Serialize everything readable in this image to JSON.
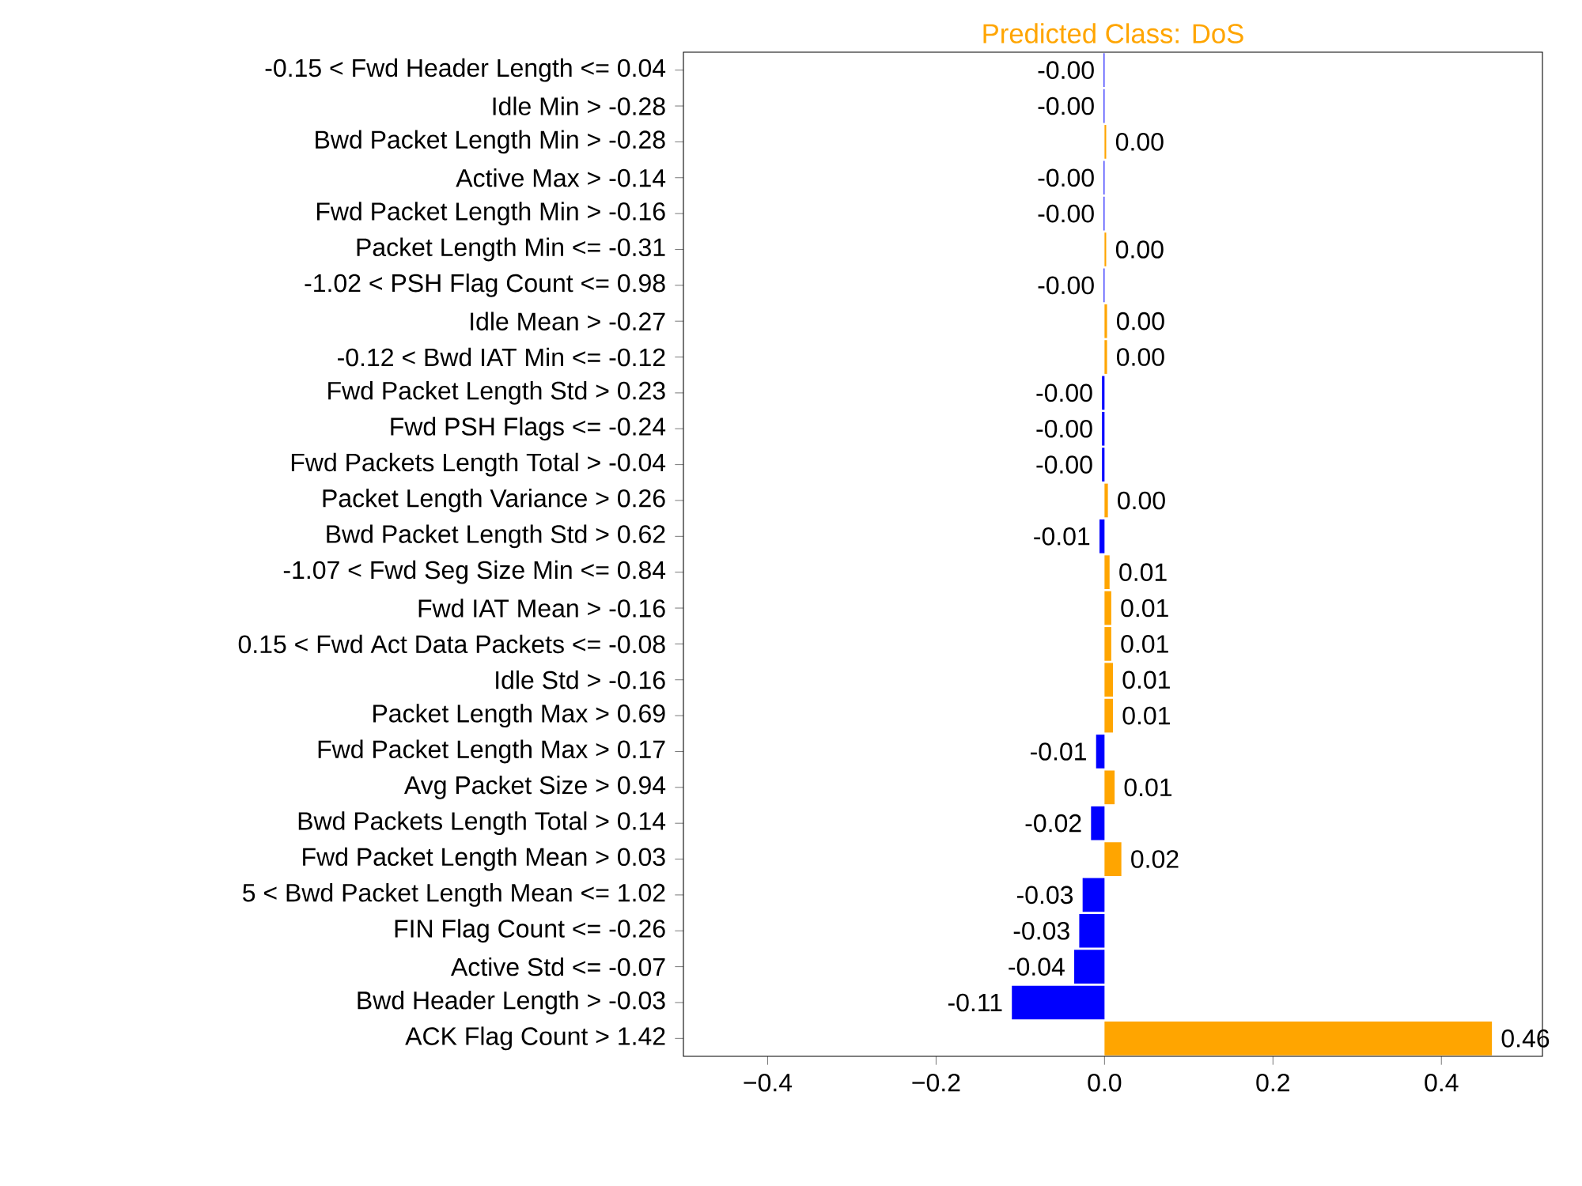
{
  "chart_data": {
    "type": "bar",
    "orientation": "horizontal",
    "title": "Predicted Class: DoS",
    "categories": [
      "-0.15 < Fwd Header Length <= 0.04",
      "Idle Min > -0.28",
      "Bwd Packet Length Min > -0.28",
      "Active Max > -0.14",
      "Fwd Packet Length Min > -0.16",
      "Packet Length Min <= -0.31",
      "-1.02 < PSH Flag Count <= 0.98",
      "Idle Mean > -0.27",
      "-0.12 < Bwd IAT Min <= -0.12",
      "Fwd Packet Length Std > 0.23",
      "Fwd PSH Flags <= -0.24",
      "Fwd Packets Length Total > -0.04",
      "Packet Length Variance > 0.26",
      "Bwd Packet Length Std > 0.62",
      "-1.07 < Fwd Seg Size Min <= 0.84",
      "Fwd IAT Mean > -0.16",
      "0.15 < Fwd Act Data Packets <= -0.08",
      "Idle Std > -0.16",
      "Packet Length Max > 0.69",
      "Fwd Packet Length Max > 0.17",
      "Avg Packet Size > 0.94",
      "Bwd Packets Length Total > 0.14",
      "Fwd Packet Length Mean > 0.03",
      "5 < Bwd Packet Length Mean <= 1.02",
      "FIN Flag Count <= -0.26",
      "Active Std <= -0.07",
      "Bwd Header Length > -0.03",
      "ACK Flag Count > 1.42"
    ],
    "values": [
      -0.001,
      -0.001,
      0.002,
      -0.001,
      -0.001,
      0.002,
      -0.001,
      0.003,
      0.003,
      -0.003,
      -0.003,
      -0.003,
      0.004,
      -0.006,
      0.006,
      0.008,
      0.008,
      0.01,
      0.01,
      -0.01,
      0.012,
      -0.016,
      0.02,
      -0.026,
      -0.03,
      -0.036,
      -0.11,
      0.46
    ],
    "value_labels": [
      "-0.00",
      "-0.00",
      "0.00",
      "-0.00",
      "-0.00",
      "0.00",
      "-0.00",
      "0.00",
      "0.00",
      "-0.00",
      "-0.00",
      "-0.00",
      "0.00",
      "-0.01",
      "0.01",
      "0.01",
      "0.01",
      "0.01",
      "0.01",
      "-0.01",
      "0.01",
      "-0.02",
      "0.02",
      "-0.03",
      "-0.03",
      "-0.04",
      "-0.11",
      "0.46"
    ],
    "colors": [
      "#0000ff",
      "#0000ff",
      "#ffa500",
      "#0000ff",
      "#0000ff",
      "#ffa500",
      "#0000ff",
      "#ffa500",
      "#ffa500",
      "#0000ff",
      "#0000ff",
      "#0000ff",
      "#ffa500",
      "#0000ff",
      "#ffa500",
      "#ffa500",
      "#ffa500",
      "#ffa500",
      "#ffa500",
      "#0000ff",
      "#ffa500",
      "#0000ff",
      "#ffa500",
      "#0000ff",
      "#0000ff",
      "#0000ff",
      "#0000ff",
      "#ffa500"
    ],
    "xlim": [
      -0.5,
      0.52
    ],
    "xticks": [
      {
        "value": -0.4,
        "label": "−0.4"
      },
      {
        "value": -0.2,
        "label": "−0.2"
      },
      {
        "value": 0.0,
        "label": "0.0"
      },
      {
        "value": 0.2,
        "label": "0.2"
      },
      {
        "value": 0.4,
        "label": "0.4"
      }
    ]
  }
}
